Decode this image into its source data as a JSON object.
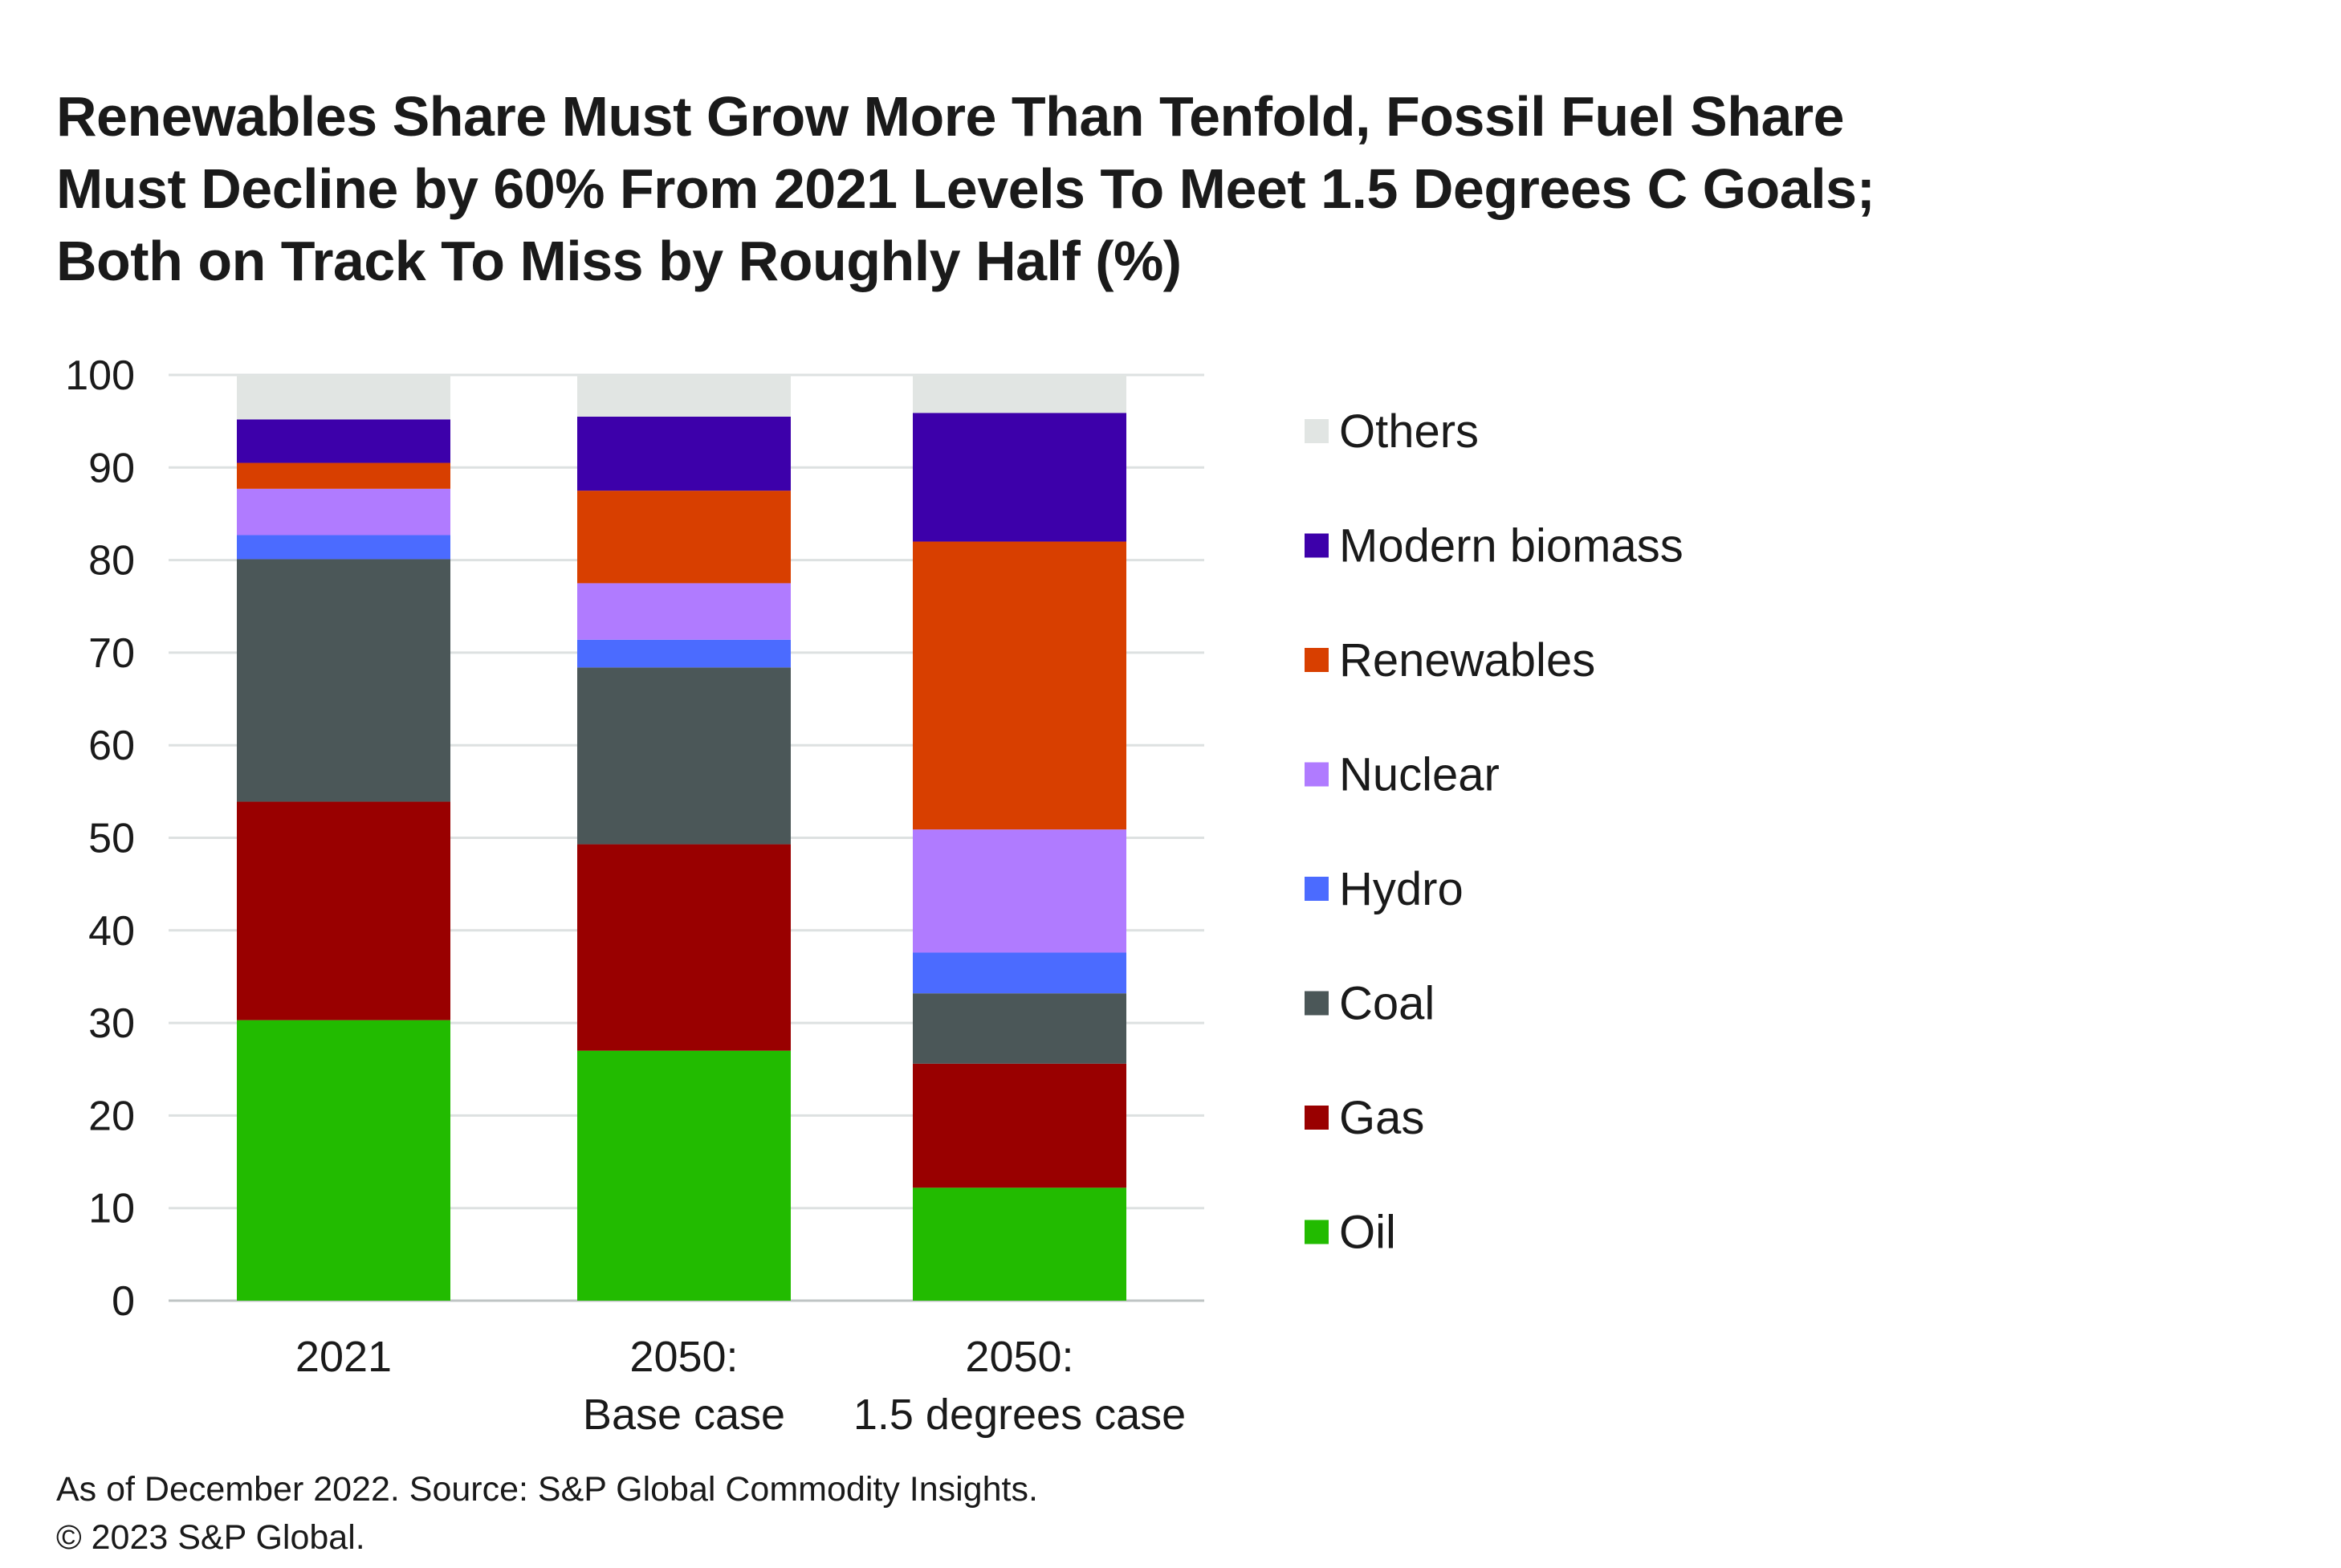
{
  "title_lines": [
    "Renewables Share Must Grow More Than Tenfold, Fossil Fuel Share",
    "Must Decline by 60% From 2021 Levels To Meet 1.5 Degrees C Goals;",
    "Both on Track To Miss by Roughly Half (%)"
  ],
  "footer": {
    "line1": "As of December 2022. Source: S&P Global Commodity Insights.",
    "line2": "© 2023 S&P Global."
  },
  "chart_data": {
    "type": "bar",
    "stacked": true,
    "categories": [
      [
        "2021"
      ],
      [
        "2050:",
        "Base case"
      ],
      [
        "2050:",
        "1.5 degrees case"
      ]
    ],
    "ylim": [
      0,
      100
    ],
    "yticks": [
      0,
      10,
      20,
      30,
      40,
      50,
      60,
      70,
      80,
      90,
      100
    ],
    "grid": true,
    "legend_position": "right",
    "series": [
      {
        "name": "Oil",
        "color": "#22bb00",
        "values": [
          30.3,
          27.0,
          12.2
        ]
      },
      {
        "name": "Gas",
        "color": "#990000",
        "values": [
          23.6,
          22.3,
          13.4
        ]
      },
      {
        "name": "Coal",
        "color": "#4b5758",
        "values": [
          26.2,
          19.1,
          7.6
        ]
      },
      {
        "name": "Hydro",
        "color": "#4b6bff",
        "values": [
          2.6,
          3.0,
          4.4
        ]
      },
      {
        "name": "Nuclear",
        "color": "#b07bff",
        "values": [
          5.0,
          6.1,
          13.3
        ]
      },
      {
        "name": "Renewables",
        "color": "#d83f00",
        "values": [
          2.8,
          10.0,
          31.1
        ]
      },
      {
        "name": "Modern biomass",
        "color": "#3d00aa",
        "values": [
          4.7,
          8.0,
          13.9
        ]
      },
      {
        "name": "Others",
        "color": "#e1e5e3",
        "values": [
          4.8,
          4.5,
          4.1
        ]
      }
    ]
  }
}
